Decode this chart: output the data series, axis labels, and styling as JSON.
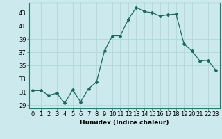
{
  "x": [
    0,
    1,
    2,
    3,
    4,
    5,
    6,
    7,
    8,
    9,
    10,
    11,
    12,
    13,
    14,
    15,
    16,
    17,
    18,
    19,
    20,
    21,
    22,
    23
  ],
  "y": [
    31.2,
    31.2,
    30.5,
    30.8,
    29.3,
    31.3,
    29.5,
    31.5,
    32.5,
    37.2,
    39.5,
    39.5,
    42.0,
    43.8,
    43.2,
    43.0,
    42.5,
    42.7,
    42.8,
    38.3,
    37.2,
    35.7,
    35.8,
    34.3
  ],
  "line_color": "#1a6b5a",
  "marker": "D",
  "marker_size": 2.0,
  "bg_color": "#cce9ed",
  "grid_color": "#b0d8dc",
  "xlabel": "Humidex (Indice chaleur)",
  "ylim": [
    28.5,
    44.5
  ],
  "xlim": [
    -0.5,
    23.5
  ],
  "yticks": [
    29,
    31,
    33,
    35,
    37,
    39,
    41,
    43
  ],
  "xtick_labels": [
    "0",
    "1",
    "2",
    "3",
    "4",
    "5",
    "6",
    "7",
    "8",
    "9",
    "10",
    "11",
    "12",
    "13",
    "14",
    "15",
    "16",
    "17",
    "18",
    "19",
    "20",
    "21",
    "22",
    "23"
  ],
  "label_fontsize": 6.5,
  "tick_fontsize": 6,
  "line_width": 0.9
}
